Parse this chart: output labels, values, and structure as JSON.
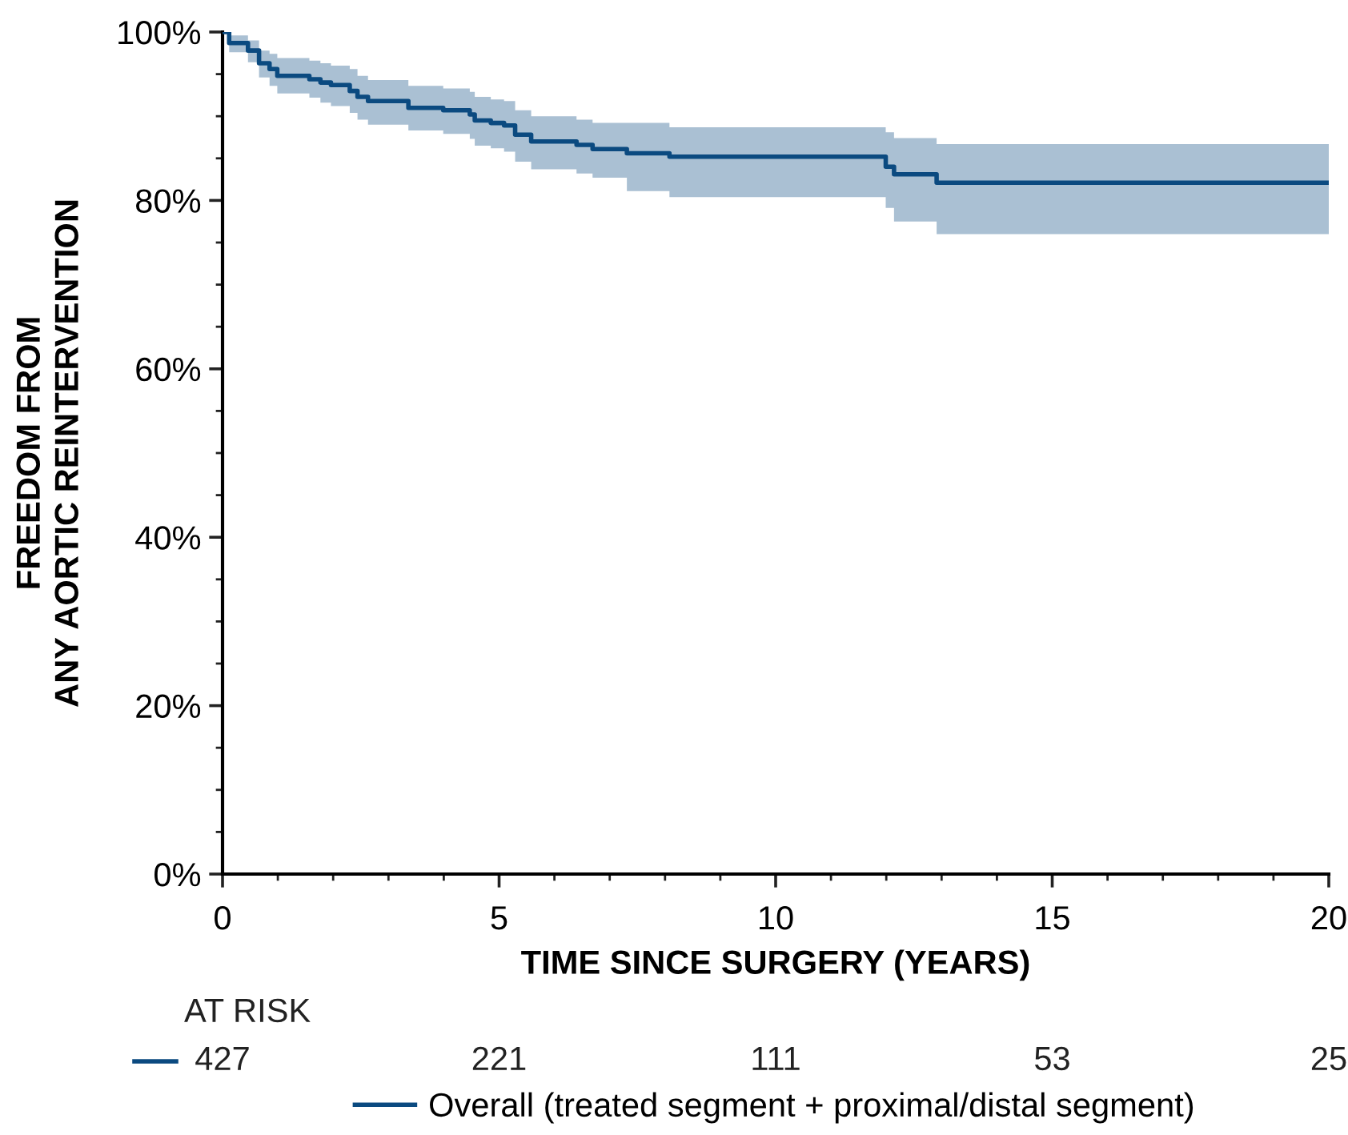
{
  "chart_data": {
    "type": "step",
    "xlabel": "TIME SINCE SURGERY (YEARS)",
    "ylabel": "FREEDOM FROM\nANY AORTIC REINTERVENTION",
    "xlim": [
      0,
      20
    ],
    "xticks": [
      0,
      5,
      10,
      15,
      20
    ],
    "ylim": [
      0,
      100
    ],
    "yticks": [
      {
        "value": 0,
        "label": "0%"
      },
      {
        "value": 20,
        "label": "20%"
      },
      {
        "value": 40,
        "label": "40%"
      },
      {
        "value": 60,
        "label": "60%"
      },
      {
        "value": 80,
        "label": "80%"
      },
      {
        "value": 100,
        "label": "100%"
      }
    ],
    "grid": false,
    "legend": "bottom",
    "line_style": "solid",
    "marker": "none",
    "series": [
      {
        "name": "Overall (treated segment + proximal/distal segment)",
        "color": "#0b4a80",
        "x": [
          0,
          0.12,
          0.46,
          0.66,
          0.85,
          0.99,
          1.57,
          1.77,
          1.96,
          2.3,
          2.44,
          2.63,
          3.36,
          3.99,
          4.47,
          4.56,
          4.85,
          5.09,
          5.29,
          5.58,
          6.4,
          6.69,
          7.31,
          8.08,
          11.99,
          12.14,
          12.91,
          20
        ],
        "values": [
          100,
          98.7,
          97.8,
          96.3,
          95.6,
          94.8,
          94.4,
          94.0,
          93.7,
          93.0,
          92.3,
          91.8,
          91.0,
          90.7,
          90.2,
          89.5,
          89.2,
          88.9,
          87.8,
          87.0,
          86.6,
          86.1,
          85.6,
          85.2,
          84.0,
          83.1,
          82.1,
          82.1
        ],
        "upper": [
          100,
          99.6,
          99.0,
          97.8,
          97.4,
          96.9,
          96.6,
          96.3,
          96.0,
          95.6,
          94.8,
          94.3,
          93.6,
          93.3,
          92.9,
          92.3,
          92.0,
          91.8,
          90.7,
          90.0,
          89.6,
          89.2,
          89.2,
          88.7,
          88.1,
          87.4,
          86.7,
          86.7
        ],
        "lower": [
          100,
          97.6,
          96.4,
          94.6,
          93.6,
          92.7,
          92.2,
          91.6,
          91.2,
          90.4,
          89.6,
          89.0,
          88.3,
          87.9,
          87.3,
          86.5,
          86.2,
          85.8,
          84.6,
          83.7,
          83.2,
          82.7,
          81.1,
          80.4,
          79.1,
          77.5,
          76.0,
          76.0
        ]
      }
    ],
    "annotations": [
      "AT RISK",
      "427",
      "221",
      "111",
      "53",
      "25"
    ]
  }
}
